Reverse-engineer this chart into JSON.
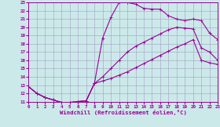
{
  "xlabel": "Windchill (Refroidissement éolien,°C)",
  "xlim": [
    0,
    23
  ],
  "ylim": [
    11,
    23
  ],
  "xticks": [
    0,
    1,
    2,
    3,
    4,
    5,
    6,
    7,
    8,
    9,
    10,
    11,
    12,
    13,
    14,
    15,
    16,
    17,
    18,
    19,
    20,
    21,
    22,
    23
  ],
  "yticks": [
    11,
    12,
    13,
    14,
    15,
    16,
    17,
    18,
    19,
    20,
    21,
    22,
    23
  ],
  "color": "#990099",
  "bg_color": "#cce9e9",
  "grid_color": "#aaaacc",
  "line1_y": [
    12.8,
    12.0,
    11.5,
    11.2,
    10.9,
    10.9,
    11.0,
    11.1,
    13.2,
    18.7,
    21.2,
    23.0,
    23.0,
    22.8,
    22.3,
    22.2,
    22.2,
    21.4,
    21.0,
    20.8,
    21.0,
    20.8,
    19.3,
    18.5
  ],
  "line2_y": [
    12.8,
    12.0,
    11.5,
    11.2,
    10.9,
    10.9,
    11.0,
    11.1,
    13.2,
    14.0,
    15.0,
    16.0,
    17.0,
    17.7,
    18.2,
    18.7,
    19.2,
    19.7,
    20.0,
    19.9,
    19.8,
    17.5,
    17.0,
    16.0
  ],
  "line3_y": [
    12.8,
    12.0,
    11.5,
    11.2,
    10.9,
    10.9,
    11.0,
    11.1,
    13.2,
    13.5,
    13.8,
    14.2,
    14.6,
    15.1,
    15.6,
    16.1,
    16.6,
    17.1,
    17.6,
    18.0,
    18.5,
    16.0,
    15.7,
    15.5
  ]
}
